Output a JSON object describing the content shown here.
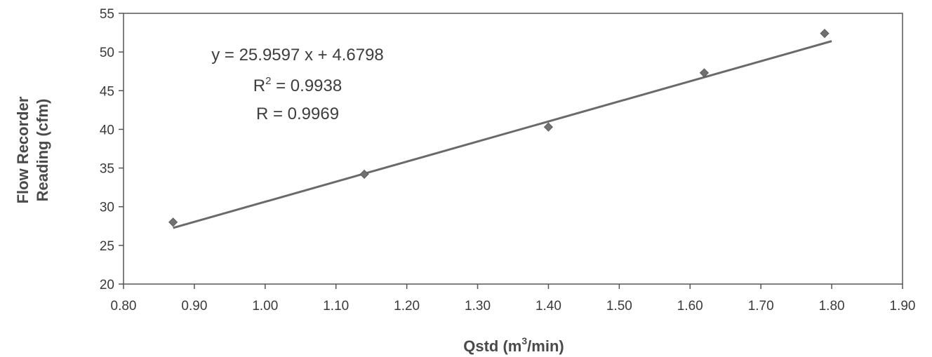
{
  "chart_data": {
    "type": "scatter",
    "x": [
      0.87,
      1.14,
      1.4,
      1.62,
      1.79
    ],
    "y": [
      28.0,
      34.2,
      40.3,
      47.3,
      52.4
    ],
    "trendline": {
      "slope": 25.9597,
      "intercept": 4.6798,
      "x_range": [
        0.87,
        1.8
      ]
    },
    "xlim": [
      0.8,
      1.9
    ],
    "ylim": [
      20,
      55
    ],
    "x_ticks": [
      "0.80",
      "0.90",
      "1.00",
      "1.10",
      "1.20",
      "1.30",
      "1.40",
      "1.50",
      "1.60",
      "1.70",
      "1.80",
      "1.90"
    ],
    "y_ticks": [
      "20",
      "25",
      "30",
      "35",
      "40",
      "45",
      "50",
      "55"
    ],
    "xlabel_main": "Qstd (m",
    "xlabel_sup": "3",
    "xlabel_end": "/min)",
    "ylabel_line1": "Flow Recorder",
    "ylabel_line2": "Reading (cfm)",
    "annotation": {
      "equation": "y = 25.9597 x + 4.6798",
      "r2_prefix": "R",
      "r2_sup": "2",
      "r2_value": " = 0.9938",
      "r": "R = 0.9969"
    },
    "grid": false,
    "legend": "none",
    "colors": {
      "marker": "#707070",
      "line": "#6a6a6a",
      "frame": "#555555",
      "text": "#3a3a3a"
    }
  }
}
